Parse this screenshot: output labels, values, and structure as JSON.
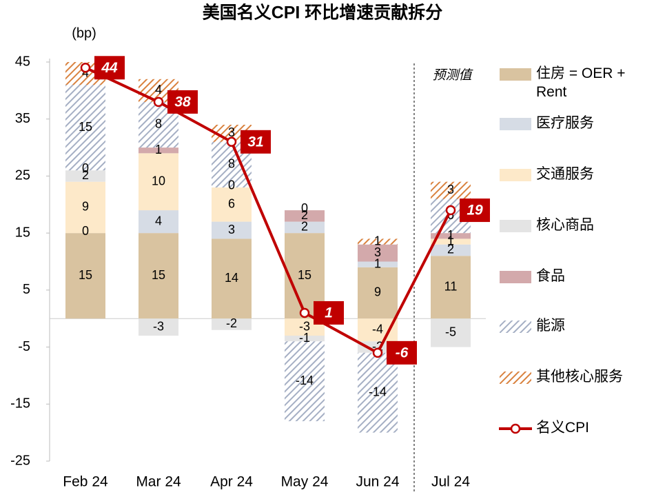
{
  "chart_data": {
    "type": "bar",
    "title": "美国名义CPI 环比增速贡献拆分",
    "y_label": "(bp)",
    "annotation": "预测值",
    "categories": [
      "Feb 24",
      "Mar 24",
      "Apr 24",
      "May 24",
      "Jun 24",
      "Jul 24"
    ],
    "ylim": [
      -25,
      45
    ],
    "yticks": [
      45,
      35,
      25,
      15,
      5,
      -5,
      -15,
      -25
    ],
    "grid": false,
    "legend": "right",
    "series": [
      {
        "name": "住房 = OER + Rent",
        "color": "#d9c3a0",
        "values": [
          15,
          15,
          14,
          15,
          9,
          11
        ]
      },
      {
        "name": "医疗服务",
        "color": "#d6dce5",
        "values": [
          0,
          4,
          3,
          2,
          1,
          2
        ]
      },
      {
        "name": "交通服务",
        "color": "#fde9c9",
        "values": [
          9,
          10,
          6,
          -3,
          -4,
          1
        ]
      },
      {
        "name": "核心商品",
        "color": "#e4e4e4",
        "values": [
          2,
          -3,
          -2,
          -1,
          -2,
          -5
        ]
      },
      {
        "name": "食品",
        "color": "#d3a9ab",
        "values": [
          0,
          1,
          0,
          2,
          3,
          1
        ]
      },
      {
        "name": "能源",
        "color": "#a5afc4",
        "pattern": "hatch",
        "values": [
          15,
          8,
          8,
          -14,
          -14,
          6
        ]
      },
      {
        "name": "其他核心服务",
        "color": "#d9823f",
        "pattern": "hatch",
        "values": [
          4,
          4,
          3,
          0,
          1,
          3
        ]
      },
      {
        "name": "名义CPI",
        "color": "#c00000",
        "type": "line",
        "values": [
          44,
          38,
          31,
          1,
          -6,
          19
        ]
      }
    ]
  }
}
